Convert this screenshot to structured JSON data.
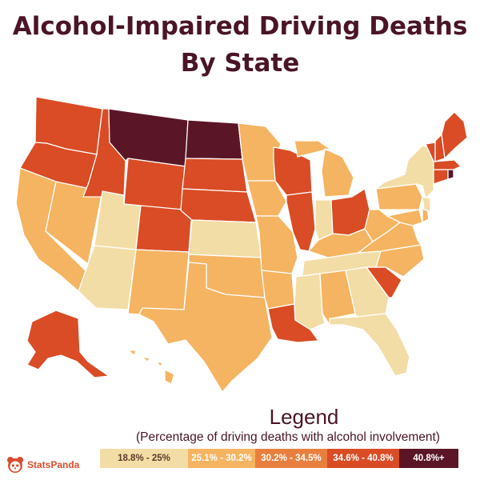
{
  "title": {
    "line1": "Alcohol-Impaired Driving Deaths",
    "line2": "By State"
  },
  "colors": {
    "c1": "#f3dda6",
    "c2": "#f5b461",
    "c3": "#e97f3f",
    "c4": "#d94c25",
    "c5": "#5a1627"
  },
  "legend": {
    "title": "Legend",
    "subtitle": "(Percentage of driving deaths with alcohol involvement)",
    "items": [
      {
        "label": "18.8% - 25%",
        "color": "#f3dda6",
        "text_color": "#5b3a2a"
      },
      {
        "label": "25.1% - 30.2%",
        "color": "#f5b461",
        "text_color": "#ffffff"
      },
      {
        "label": "30.2% - 34.5%",
        "color": "#e97f3f",
        "text_color": "#ffffff"
      },
      {
        "label": "34.6% - 40.8%",
        "color": "#d94c25",
        "text_color": "#ffffff"
      },
      {
        "label": "40.8%+",
        "color": "#5a1627",
        "text_color": "#ffffff"
      }
    ]
  },
  "states": [
    {
      "id": "WA",
      "name": "Washington",
      "category": 4
    },
    {
      "id": "OR",
      "name": "Oregon",
      "category": 4
    },
    {
      "id": "CA",
      "name": "California",
      "category": 2
    },
    {
      "id": "NV",
      "name": "Nevada",
      "category": 2
    },
    {
      "id": "ID",
      "name": "Idaho",
      "category": 4
    },
    {
      "id": "MT",
      "name": "Montana",
      "category": 5
    },
    {
      "id": "WY",
      "name": "Wyoming",
      "category": 4
    },
    {
      "id": "UT",
      "name": "Utah",
      "category": 1
    },
    {
      "id": "AZ",
      "name": "Arizona",
      "category": 1
    },
    {
      "id": "CO",
      "name": "Colorado",
      "category": 4
    },
    {
      "id": "NM",
      "name": "New Mexico",
      "category": 2
    },
    {
      "id": "ND",
      "name": "North Dakota",
      "category": 5
    },
    {
      "id": "SD",
      "name": "South Dakota",
      "category": 4
    },
    {
      "id": "NE",
      "name": "Nebraska",
      "category": 4
    },
    {
      "id": "KS",
      "name": "Kansas",
      "category": 1
    },
    {
      "id": "OK",
      "name": "Oklahoma",
      "category": 2
    },
    {
      "id": "TX",
      "name": "Texas",
      "category": 2
    },
    {
      "id": "MN",
      "name": "Minnesota",
      "category": 2
    },
    {
      "id": "IA",
      "name": "Iowa",
      "category": 2
    },
    {
      "id": "MO",
      "name": "Missouri",
      "category": 2
    },
    {
      "id": "AR",
      "name": "Arkansas",
      "category": 2
    },
    {
      "id": "LA",
      "name": "Louisiana",
      "category": 4
    },
    {
      "id": "WI",
      "name": "Wisconsin",
      "category": 4
    },
    {
      "id": "IL",
      "name": "Illinois",
      "category": 4
    },
    {
      "id": "MI",
      "name": "Michigan",
      "category": 2
    },
    {
      "id": "IN",
      "name": "Indiana",
      "category": 1
    },
    {
      "id": "OH",
      "name": "Ohio",
      "category": 4
    },
    {
      "id": "KY",
      "name": "Kentucky",
      "category": 2
    },
    {
      "id": "TN",
      "name": "Tennessee",
      "category": 1
    },
    {
      "id": "MS",
      "name": "Mississippi",
      "category": 1
    },
    {
      "id": "AL",
      "name": "Alabama",
      "category": 2
    },
    {
      "id": "GA",
      "name": "Georgia",
      "category": 1
    },
    {
      "id": "FL",
      "name": "Florida",
      "category": 1
    },
    {
      "id": "SC",
      "name": "South Carolina",
      "category": 4
    },
    {
      "id": "NC",
      "name": "North Carolina",
      "category": 2
    },
    {
      "id": "VA",
      "name": "Virginia",
      "category": 2
    },
    {
      "id": "WV",
      "name": "West Virginia",
      "category": 2
    },
    {
      "id": "PA",
      "name": "Pennsylvania",
      "category": 2
    },
    {
      "id": "NY",
      "name": "New York",
      "category": 1
    },
    {
      "id": "MD",
      "name": "Maryland",
      "category": 2
    },
    {
      "id": "DE",
      "name": "Delaware",
      "category": 2
    },
    {
      "id": "NJ",
      "name": "New Jersey",
      "category": 1
    },
    {
      "id": "CT",
      "name": "Connecticut",
      "category": 4
    },
    {
      "id": "RI",
      "name": "Rhode Island",
      "category": 5
    },
    {
      "id": "MA",
      "name": "Massachusetts",
      "category": 4
    },
    {
      "id": "VT",
      "name": "Vermont",
      "category": 4
    },
    {
      "id": "NH",
      "name": "New Hampshire",
      "category": 4
    },
    {
      "id": "ME",
      "name": "Maine",
      "category": 4
    },
    {
      "id": "AK",
      "name": "Alaska",
      "category": 4
    },
    {
      "id": "HI",
      "name": "Hawaii",
      "category": 2
    }
  ],
  "brand": {
    "name": "StatsPanda",
    "icon": "panda-icon"
  }
}
